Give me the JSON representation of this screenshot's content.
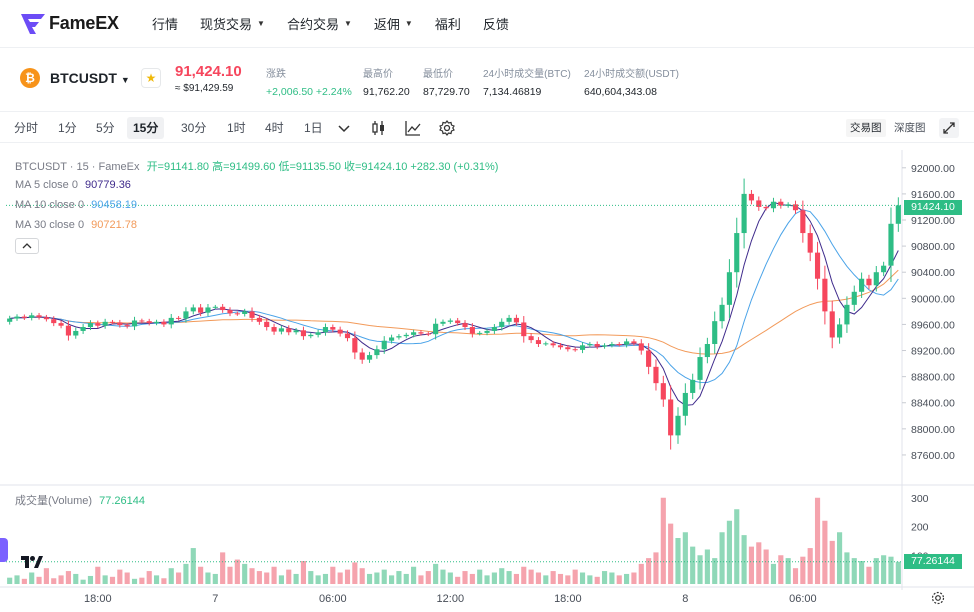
{
  "nav": {
    "brand": "FameEX",
    "items": [
      {
        "label": "行情",
        "dropdown": false
      },
      {
        "label": "现货交易",
        "dropdown": true
      },
      {
        "label": "合约交易",
        "dropdown": true
      },
      {
        "label": "返佣",
        "dropdown": true
      },
      {
        "label": "福利",
        "dropdown": false
      },
      {
        "label": "反馈",
        "dropdown": false
      }
    ]
  },
  "ticker": {
    "symbol": "BTCUSDT",
    "last_price": "91,424.10",
    "last_price_usd": "≈ $91,429.59",
    "change_label": "涨跌",
    "change_value": "+2,006.50 +2.24%",
    "high_label": "最高价",
    "high_value": "91,762.20",
    "low_label": "最低价",
    "low_value": "87,729.70",
    "vol_btc_label": "24小时成交量(BTC)",
    "vol_btc_value": "7,134.46819",
    "vol_usdt_label": "24小时成交额(USDT)",
    "vol_usdt_value": "640,604,343.08"
  },
  "toolbar": {
    "intervals": [
      "分时",
      "1分",
      "5分",
      "15分",
      "30分",
      "1时",
      "4时",
      "1日"
    ],
    "active_interval": "15分",
    "view_tabs": [
      "交易图",
      "深度图"
    ],
    "active_view": "交易图"
  },
  "legend": {
    "title": "BTCUSDT · 15 · FameEx",
    "ohlc": "开=91141.80 高=91499.60 低=91135.50 收=91424.10 +282.30 (+0.31%)",
    "ma5_label": "MA 5 close 0",
    "ma5_value": "90779.36",
    "ma10_label": "MA 10 close 0",
    "ma10_value": "90458.19",
    "ma30_label": "MA 30 close 0",
    "ma30_value": "90721.78",
    "volume_label": "成交量(Volume)",
    "volume_value": "77.26144"
  },
  "colors": {
    "up": "#2ebd85",
    "down": "#f6465d",
    "ma5": "#3f2b8c",
    "ma10": "#4aa3e8",
    "ma30": "#f29a5a",
    "legend_up": "#2ebd85"
  },
  "chart_data": {
    "type": "candlestick",
    "price_axis": {
      "ticks": [
        87600,
        88000,
        88400,
        88800,
        89200,
        89600,
        90000,
        90400,
        90800,
        91200,
        91600,
        92000
      ],
      "range": [
        87400,
        92150
      ]
    },
    "volume_axis": {
      "ticks": [
        100,
        200,
        300
      ],
      "range": [
        0,
        320
      ]
    },
    "time_labels": [
      {
        "label": "18:00",
        "index": 12
      },
      {
        "label": "7",
        "index": 28
      },
      {
        "label": "06:00",
        "index": 44
      },
      {
        "label": "12:00",
        "index": 60
      },
      {
        "label": "18:00",
        "index": 76
      },
      {
        "label": "8",
        "index": 92
      },
      {
        "label": "06:00",
        "index": 108
      }
    ],
    "last_price_tag": "91424.10",
    "last_volume_tag": "77.26144",
    "price_tag_labels": [
      "92000.00",
      "91600.00",
      "91200.00",
      "90800.00",
      "90400.00",
      "90000.00",
      "89600.00",
      "89200.00",
      "88800.00",
      "88400.00",
      "88000.00",
      "87600.00"
    ],
    "volume_tag_labels": [
      "300",
      "200",
      "100"
    ],
    "close": [
      89690,
      89720,
      89700,
      89740,
      89710,
      89680,
      89620,
      89580,
      89430,
      89500,
      89560,
      89620,
      89580,
      89640,
      89630,
      89590,
      89570,
      89660,
      89650,
      89620,
      89640,
      89600,
      89700,
      89690,
      89800,
      89860,
      89780,
      89860,
      89870,
      89820,
      89770,
      89760,
      89800,
      89700,
      89640,
      89560,
      89490,
      89540,
      89480,
      89510,
      89420,
      89440,
      89480,
      89560,
      89520,
      89460,
      89390,
      89170,
      89060,
      89130,
      89220,
      89350,
      89400,
      89420,
      89440,
      89480,
      89460,
      89450,
      89610,
      89640,
      89660,
      89620,
      89560,
      89460,
      89470,
      89500,
      89560,
      89640,
      89700,
      89630,
      89420,
      89360,
      89300,
      89310,
      89280,
      89250,
      89220,
      89210,
      89280,
      89300,
      89260,
      89280,
      89300,
      89290,
      89340,
      89310,
      89200,
      88950,
      88700,
      88450,
      87900,
      88200,
      88550,
      88750,
      89100,
      89300,
      89650,
      89900,
      90400,
      91000,
      91600,
      91500,
      91400,
      91380,
      91480,
      91420,
      91440,
      91350,
      91000,
      90700,
      90300,
      89800,
      89400,
      89600,
      89900,
      90100,
      90300,
      90200,
      90400,
      90500,
      91141.8,
      91424.1
    ],
    "open": [
      89640,
      89690,
      89720,
      89700,
      89740,
      89710,
      89680,
      89620,
      89580,
      89430,
      89500,
      89560,
      89620,
      89580,
      89640,
      89630,
      89590,
      89570,
      89660,
      89650,
      89620,
      89640,
      89600,
      89700,
      89690,
      89800,
      89860,
      89780,
      89860,
      89870,
      89820,
      89770,
      89760,
      89800,
      89700,
      89640,
      89560,
      89490,
      89540,
      89480,
      89510,
      89420,
      89440,
      89480,
      89560,
      89520,
      89460,
      89390,
      89170,
      89060,
      89130,
      89220,
      89350,
      89400,
      89420,
      89440,
      89480,
      89460,
      89450,
      89610,
      89640,
      89660,
      89620,
      89560,
      89460,
      89470,
      89500,
      89560,
      89640,
      89700,
      89630,
      89420,
      89360,
      89300,
      89310,
      89280,
      89250,
      89220,
      89210,
      89280,
      89300,
      89260,
      89280,
      89300,
      89290,
      89340,
      89310,
      89200,
      88950,
      88700,
      88450,
      87900,
      88200,
      88550,
      88750,
      89100,
      89300,
      89650,
      89900,
      90400,
      91000,
      91600,
      91500,
      91400,
      91380,
      91480,
      91420,
      91440,
      91350,
      91000,
      90700,
      90300,
      89800,
      89400,
      89600,
      89900,
      90100,
      90300,
      90200,
      90400,
      90500,
      91141.8
    ],
    "volume": [
      22,
      30,
      18,
      40,
      25,
      55,
      20,
      30,
      45,
      35,
      15,
      28,
      60,
      30,
      25,
      50,
      40,
      18,
      22,
      45,
      30,
      20,
      55,
      40,
      70,
      125,
      60,
      40,
      35,
      110,
      60,
      85,
      70,
      55,
      45,
      40,
      60,
      30,
      50,
      35,
      80,
      45,
      30,
      35,
      60,
      40,
      50,
      75,
      55,
      35,
      40,
      50,
      30,
      45,
      35,
      60,
      30,
      45,
      70,
      50,
      40,
      25,
      45,
      35,
      50,
      30,
      40,
      55,
      45,
      35,
      60,
      50,
      40,
      30,
      45,
      35,
      30,
      50,
      40,
      30,
      25,
      45,
      40,
      30,
      35,
      40,
      70,
      90,
      110,
      300,
      210,
      160,
      180,
      130,
      100,
      120,
      90,
      180,
      220,
      260,
      170,
      130,
      145,
      120,
      70,
      100,
      90,
      55,
      95,
      125,
      300,
      220,
      150,
      180,
      110,
      90,
      80,
      60,
      90,
      100,
      95,
      77.26
    ]
  }
}
